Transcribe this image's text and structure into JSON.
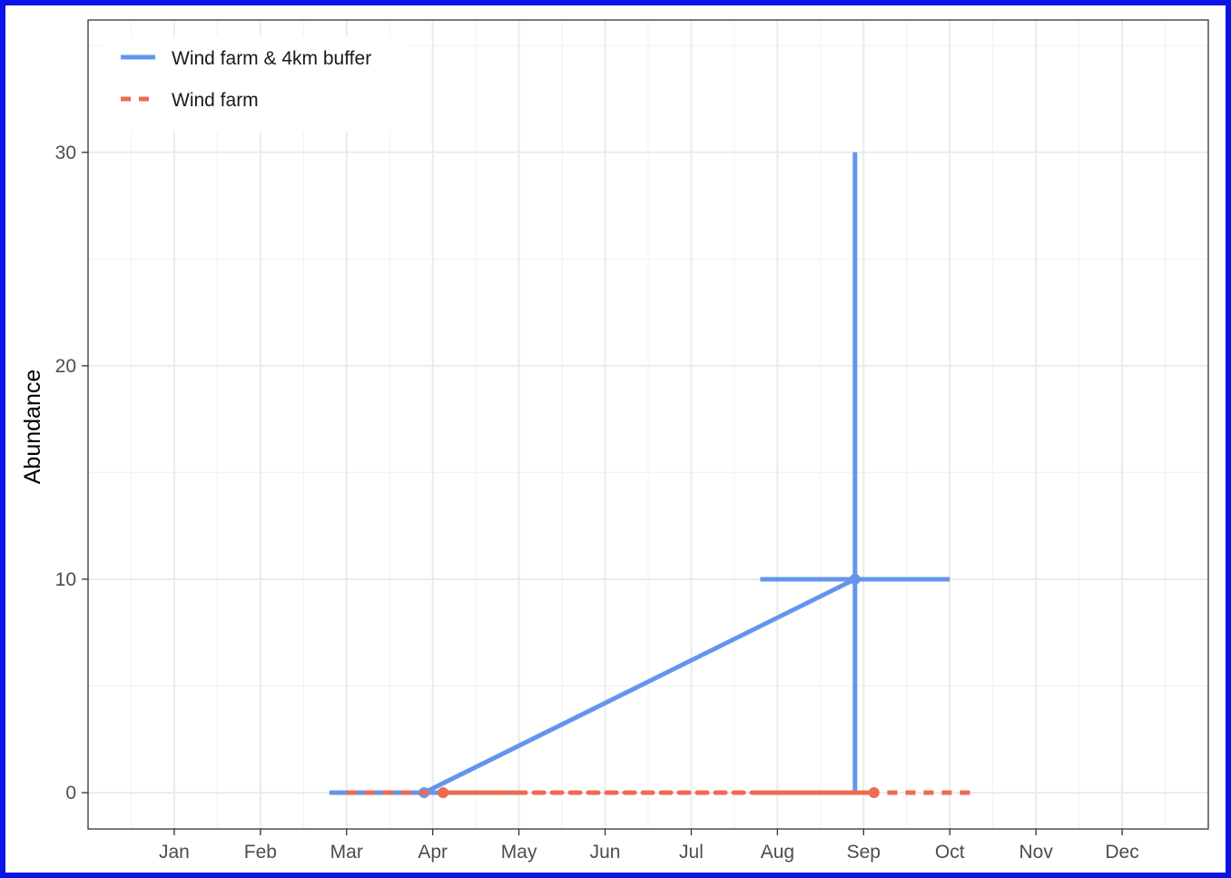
{
  "chart_data": {
    "type": "line",
    "title": "",
    "xlabel": "",
    "ylabel": "Abundance",
    "x_ticks": [
      "Jan",
      "Feb",
      "Mar",
      "Apr",
      "May",
      "Jun",
      "Jul",
      "Aug",
      "Sep",
      "Oct",
      "Nov",
      "Dec"
    ],
    "y_ticks": [
      0,
      10,
      20,
      30
    ],
    "xlim": [
      0.0,
      13.0
    ],
    "ylim": [
      -1.7,
      36.2
    ],
    "grid": true,
    "legend_position": "top-left",
    "series": [
      {
        "name": "Wind farm & 4km buffer",
        "color": "#6495ed",
        "linestyle": "solid",
        "points": [
          {
            "x": 3.9,
            "y": 0,
            "ymin": 0,
            "ymax": 0,
            "xmin": 2.8,
            "xmax": 5.0
          },
          {
            "x": 8.9,
            "y": 10,
            "ymin": 0,
            "ymax": 30,
            "xmin": 7.8,
            "xmax": 10.0
          }
        ]
      },
      {
        "name": "Wind farm",
        "color": "#ee6a50",
        "linestyle": "dashed",
        "points": [
          {
            "x": 4.12,
            "y": 0,
            "ymin": 0,
            "ymax": 0,
            "xmin": 3.0,
            "xmax": 5.0
          },
          {
            "x": 9.12,
            "y": 0,
            "ymin": 0,
            "ymax": 0,
            "xmin": 7.8,
            "xmax": 10.25
          }
        ]
      }
    ]
  }
}
